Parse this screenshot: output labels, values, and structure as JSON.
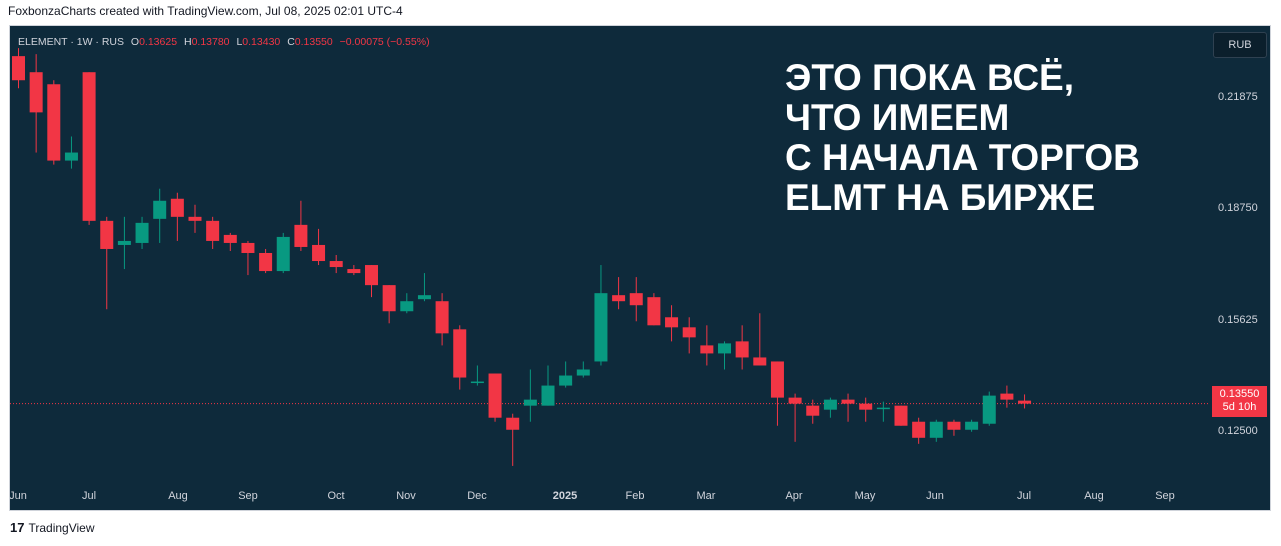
{
  "header": {
    "text": "FoxbonzaCharts created with TradingView.com, Jul 08, 2025 02:01 UTC-4"
  },
  "info": {
    "symbol": "ELEMENT · 1W · RUS",
    "open_key": "O",
    "open": "0.13625",
    "high_key": "H",
    "high": "0.13780",
    "low_key": "L",
    "low": "0.13430",
    "close_key": "C",
    "close": "0.13550",
    "change": "−0.00075 (−0.55%)"
  },
  "currency_button": "RUB",
  "overlay_lines": [
    "ЭТО ПОКА ВСЁ,",
    "ЧТО ИМЕЕМ",
    "С НАЧАЛА ТОРГОВ",
    "ELMT НА БИРЖЕ"
  ],
  "y_axis": {
    "labels": [
      "0.21875",
      "0.18750",
      "0.15625",
      "0.12500"
    ]
  },
  "x_axis": {
    "labels": [
      "Jun",
      "Jul",
      "Aug",
      "Sep",
      "Oct",
      "Nov",
      "Dec",
      "2025",
      "Feb",
      "Mar",
      "Apr",
      "May",
      "Jun",
      "Jul",
      "Aug",
      "Sep"
    ]
  },
  "price_tag": {
    "price": "0.13550",
    "countdown": "5d 10h"
  },
  "footer": {
    "logo": "17",
    "brand": "TradingView"
  },
  "colors": {
    "up": "#089981",
    "down": "#f23645",
    "background": "#0e2a3b"
  },
  "chart_data": {
    "type": "candlestick",
    "ylim": [
      0.1155,
      0.2295
    ],
    "last_price": 0.1355,
    "candles": [
      {
        "o": 0.222,
        "h": 0.224,
        "l": 0.214,
        "c": 0.216
      },
      {
        "o": 0.218,
        "h": 0.2225,
        "l": 0.198,
        "c": 0.208
      },
      {
        "o": 0.215,
        "h": 0.216,
        "l": 0.195,
        "c": 0.196
      },
      {
        "o": 0.196,
        "h": 0.202,
        "l": 0.194,
        "c": 0.198
      },
      {
        "o": 0.218,
        "h": 0.218,
        "l": 0.18,
        "c": 0.181
      },
      {
        "o": 0.181,
        "h": 0.182,
        "l": 0.159,
        "c": 0.174
      },
      {
        "o": 0.175,
        "h": 0.182,
        "l": 0.169,
        "c": 0.176
      },
      {
        "o": 0.1755,
        "h": 0.182,
        "l": 0.174,
        "c": 0.1805
      },
      {
        "o": 0.1815,
        "h": 0.189,
        "l": 0.1755,
        "c": 0.186
      },
      {
        "o": 0.1865,
        "h": 0.188,
        "l": 0.176,
        "c": 0.182
      },
      {
        "o": 0.182,
        "h": 0.185,
        "l": 0.178,
        "c": 0.181
      },
      {
        "o": 0.181,
        "h": 0.182,
        "l": 0.174,
        "c": 0.176
      },
      {
        "o": 0.1775,
        "h": 0.178,
        "l": 0.1735,
        "c": 0.1755
      },
      {
        "o": 0.1755,
        "h": 0.176,
        "l": 0.1675,
        "c": 0.173
      },
      {
        "o": 0.173,
        "h": 0.174,
        "l": 0.168,
        "c": 0.1685
      },
      {
        "o": 0.1685,
        "h": 0.178,
        "l": 0.168,
        "c": 0.177
      },
      {
        "o": 0.18,
        "h": 0.186,
        "l": 0.1735,
        "c": 0.1745
      },
      {
        "o": 0.175,
        "h": 0.179,
        "l": 0.17,
        "c": 0.171
      },
      {
        "o": 0.171,
        "h": 0.1725,
        "l": 0.168,
        "c": 0.1695
      },
      {
        "o": 0.169,
        "h": 0.17,
        "l": 0.1675,
        "c": 0.168
      },
      {
        "o": 0.17,
        "h": 0.17,
        "l": 0.162,
        "c": 0.165
      },
      {
        "o": 0.165,
        "h": 0.165,
        "l": 0.1555,
        "c": 0.1585
      },
      {
        "o": 0.1585,
        "h": 0.163,
        "l": 0.158,
        "c": 0.161
      },
      {
        "o": 0.1615,
        "h": 0.168,
        "l": 0.161,
        "c": 0.1625
      },
      {
        "o": 0.161,
        "h": 0.163,
        "l": 0.15,
        "c": 0.153
      },
      {
        "o": 0.154,
        "h": 0.155,
        "l": 0.139,
        "c": 0.142
      },
      {
        "o": 0.141,
        "h": 0.145,
        "l": 0.14,
        "c": 0.141
      },
      {
        "o": 0.143,
        "h": 0.143,
        "l": 0.131,
        "c": 0.132
      },
      {
        "o": 0.132,
        "h": 0.133,
        "l": 0.12,
        "c": 0.129
      },
      {
        "o": 0.135,
        "h": 0.144,
        "l": 0.131,
        "c": 0.1365
      },
      {
        "o": 0.135,
        "h": 0.145,
        "l": 0.135,
        "c": 0.14
      },
      {
        "o": 0.14,
        "h": 0.146,
        "l": 0.1395,
        "c": 0.1425
      },
      {
        "o": 0.1425,
        "h": 0.146,
        "l": 0.142,
        "c": 0.144
      },
      {
        "o": 0.146,
        "h": 0.17,
        "l": 0.145,
        "c": 0.163
      },
      {
        "o": 0.1625,
        "h": 0.167,
        "l": 0.159,
        "c": 0.161
      },
      {
        "o": 0.163,
        "h": 0.167,
        "l": 0.156,
        "c": 0.16
      },
      {
        "o": 0.162,
        "h": 0.163,
        "l": 0.155,
        "c": 0.155
      },
      {
        "o": 0.157,
        "h": 0.16,
        "l": 0.151,
        "c": 0.1545
      },
      {
        "o": 0.1545,
        "h": 0.157,
        "l": 0.148,
        "c": 0.152
      },
      {
        "o": 0.15,
        "h": 0.155,
        "l": 0.145,
        "c": 0.148
      },
      {
        "o": 0.148,
        "h": 0.151,
        "l": 0.144,
        "c": 0.1505
      },
      {
        "o": 0.151,
        "h": 0.155,
        "l": 0.144,
        "c": 0.147
      },
      {
        "o": 0.147,
        "h": 0.158,
        "l": 0.145,
        "c": 0.145
      },
      {
        "o": 0.146,
        "h": 0.146,
        "l": 0.13,
        "c": 0.137
      },
      {
        "o": 0.137,
        "h": 0.138,
        "l": 0.126,
        "c": 0.1355
      },
      {
        "o": 0.135,
        "h": 0.1365,
        "l": 0.1305,
        "c": 0.1325
      },
      {
        "o": 0.134,
        "h": 0.137,
        "l": 0.132,
        "c": 0.1365
      },
      {
        "o": 0.1365,
        "h": 0.138,
        "l": 0.131,
        "c": 0.1355
      },
      {
        "o": 0.1355,
        "h": 0.137,
        "l": 0.131,
        "c": 0.134
      },
      {
        "o": 0.1345,
        "h": 0.136,
        "l": 0.131,
        "c": 0.1345
      },
      {
        "o": 0.135,
        "h": 0.135,
        "l": 0.13,
        "c": 0.13
      },
      {
        "o": 0.131,
        "h": 0.132,
        "l": 0.1255,
        "c": 0.127
      },
      {
        "o": 0.127,
        "h": 0.1315,
        "l": 0.126,
        "c": 0.131
      },
      {
        "o": 0.131,
        "h": 0.1315,
        "l": 0.1275,
        "c": 0.129
      },
      {
        "o": 0.129,
        "h": 0.1315,
        "l": 0.1285,
        "c": 0.131
      },
      {
        "o": 0.1305,
        "h": 0.1385,
        "l": 0.13,
        "c": 0.1375
      },
      {
        "o": 0.138,
        "h": 0.14,
        "l": 0.1345,
        "c": 0.1365
      },
      {
        "o": 0.13625,
        "h": 0.1378,
        "l": 0.1343,
        "c": 0.1355
      }
    ]
  }
}
